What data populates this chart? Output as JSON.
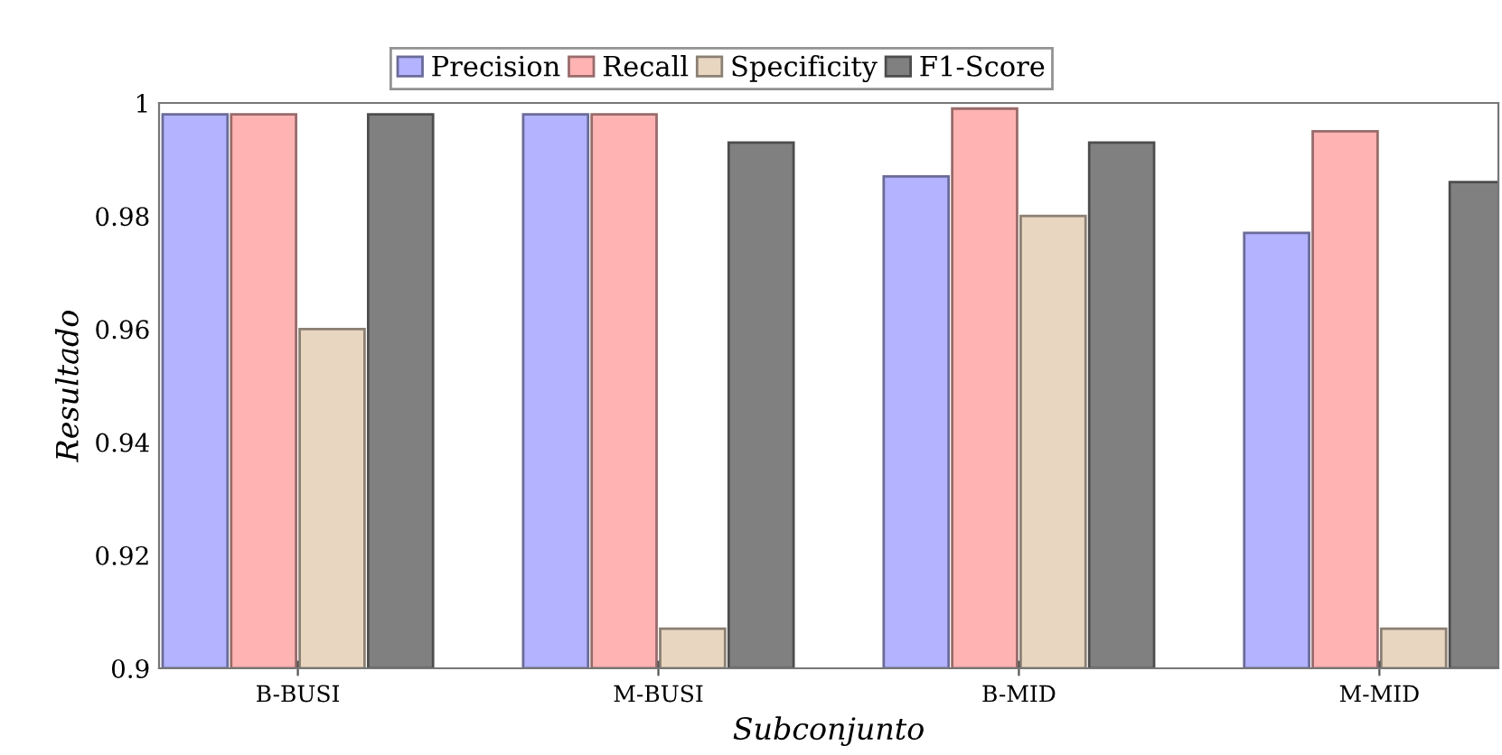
{
  "chart_data": {
    "type": "bar",
    "xlabel": "Subconjunto",
    "ylabel": "Resultado",
    "categories": [
      "B-BUSI",
      "M-BUSI",
      "B-MID",
      "M-MID"
    ],
    "series": [
      {
        "name": "Precision",
        "color": "#b3b3ff",
        "values": [
          0.998,
          0.998,
          0.987,
          0.977
        ]
      },
      {
        "name": "Recall",
        "color": "#ffb3b3",
        "values": [
          0.998,
          0.998,
          0.999,
          0.995
        ]
      },
      {
        "name": "Specificity",
        "color": "#e8d6c0",
        "values": [
          0.96,
          0.907,
          0.98,
          0.907
        ]
      },
      {
        "name": "F1-Score",
        "color": "#808080",
        "values": [
          0.998,
          0.993,
          0.993,
          0.986
        ]
      }
    ],
    "ylim": [
      0.9,
      1
    ],
    "yticks": [
      0.9,
      0.92,
      0.94,
      0.96,
      0.98,
      1
    ],
    "grid": false,
    "legend": "top"
  }
}
